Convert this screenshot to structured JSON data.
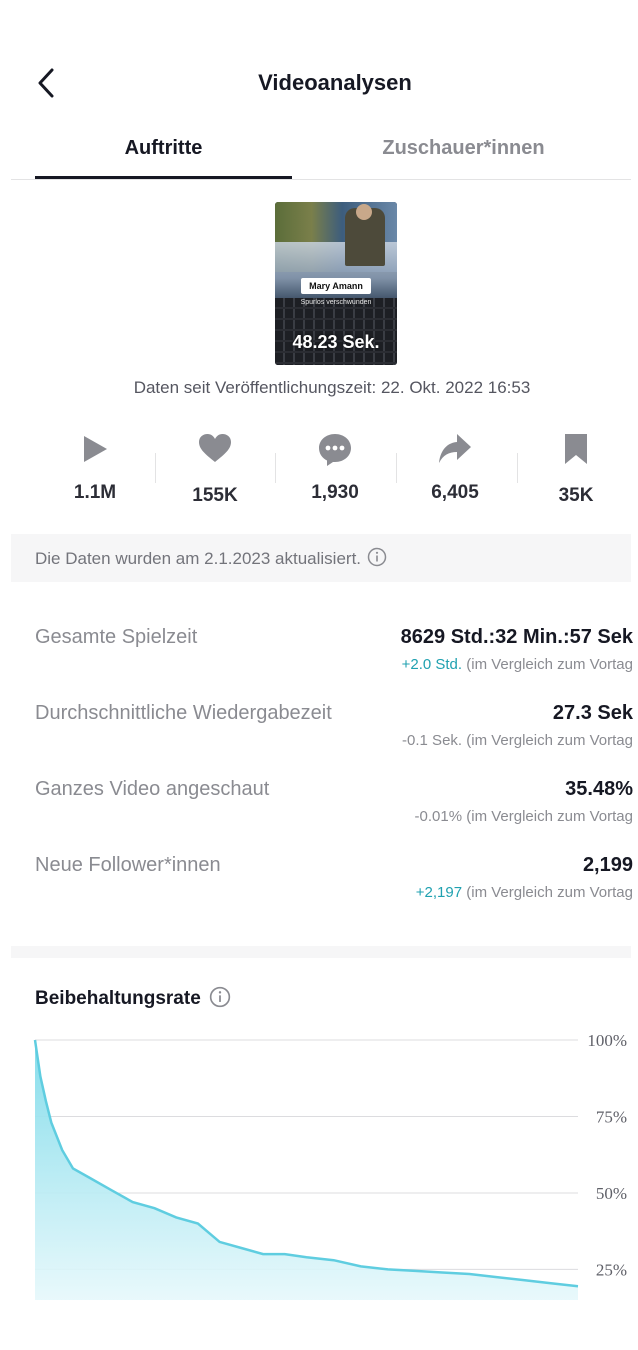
{
  "header": {
    "title": "Videoanalysen",
    "back_icon": "chevron-left-icon"
  },
  "tabs": [
    {
      "label": "Auftritte",
      "active": true
    },
    {
      "label": "Zuschauer*innen",
      "active": false
    }
  ],
  "video": {
    "name_tag": "Mary Amann",
    "subtitle": "Spurlos verschwunden",
    "duration": "48.23 Sek."
  },
  "since_text": "Daten seit Veröffentlichungszeit: 22. Okt. 2022 16:53",
  "stats": [
    {
      "icon": "play-icon",
      "value": "1.1M"
    },
    {
      "icon": "heart-icon",
      "value": "155K"
    },
    {
      "icon": "comment-icon",
      "value": "1,930"
    },
    {
      "icon": "share-icon",
      "value": "6,405"
    },
    {
      "icon": "bookmark-icon",
      "value": "35K"
    }
  ],
  "notice": {
    "text": "Die Daten wurden am 2.1.2023 aktualisiert."
  },
  "metrics": [
    {
      "label": "Gesamte Spielzeit",
      "value": "8629 Std.:32 Min.:57 Sek",
      "delta": "+2.0 Std.",
      "delta_positive": true,
      "compare": "(im Vergleich zum Vortag"
    },
    {
      "label": "Durchschnittliche Wiedergabezeit",
      "value": "27.3 Sek",
      "delta": "-0.1 Sek.",
      "delta_positive": false,
      "compare": "(im Vergleich zum Vortag"
    },
    {
      "label": "Ganzes Video angeschaut",
      "value": "35.48%",
      "delta": "-0.01%",
      "delta_positive": false,
      "compare": "(im Vergleich zum Vortag"
    },
    {
      "label": "Neue Follower*innen",
      "value": "2,199",
      "delta": "+2,197",
      "delta_positive": true,
      "compare": "(im Vergleich zum Vortag"
    }
  ],
  "colors": {
    "accent": "#20a1b0",
    "chart_line": "#5fcde0",
    "chart_fill": "#a6e6f1"
  },
  "chart_data": {
    "type": "area",
    "title": "Beibehaltungsrate",
    "xlabel": "",
    "ylabel": "",
    "ylim": [
      15,
      100
    ],
    "yticks": [
      "100%",
      "75%",
      "50%",
      "25%"
    ],
    "ytick_values": [
      100,
      75,
      50,
      25
    ],
    "grid": true,
    "x": [
      0,
      0.01,
      0.02,
      0.03,
      0.05,
      0.07,
      0.1,
      0.14,
      0.18,
      0.22,
      0.26,
      0.3,
      0.34,
      0.38,
      0.42,
      0.46,
      0.5,
      0.55,
      0.6,
      0.65,
      0.7,
      0.75,
      0.8,
      0.85,
      0.9,
      0.95,
      1.0
    ],
    "values": [
      100,
      88,
      80,
      73,
      64,
      58,
      55,
      51,
      47,
      45,
      42,
      40,
      34,
      32,
      30,
      30,
      29,
      28,
      26,
      25,
      24.5,
      24,
      23.5,
      22.5,
      21.5,
      20.5,
      19.5
    ]
  }
}
